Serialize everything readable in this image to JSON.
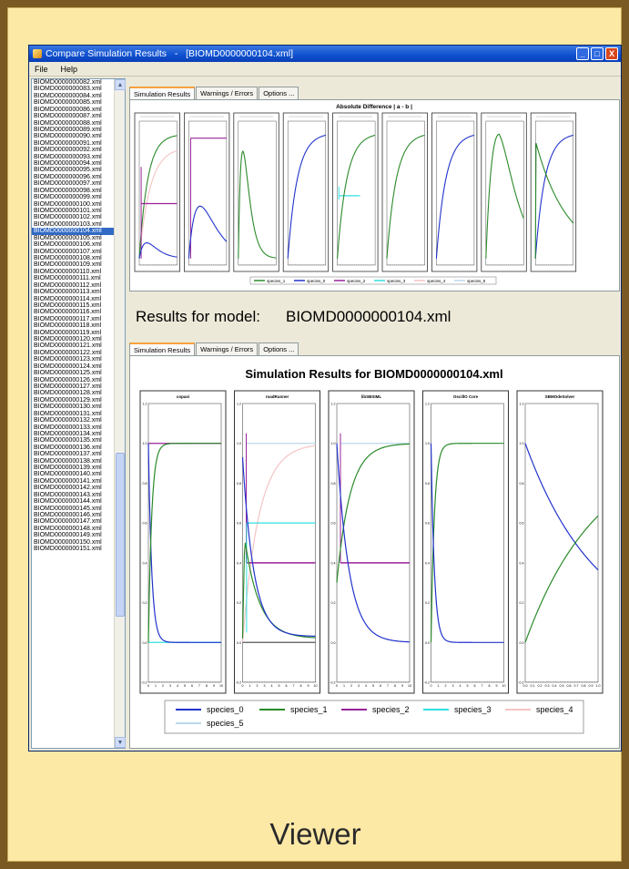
{
  "slide": {
    "caption": "Viewer",
    "background": "#fde9a6"
  },
  "window": {
    "title": "Compare Simulation Results",
    "title_sep": "-",
    "title_file": "[BIOMD0000000104.xml]",
    "minimize_label": "_",
    "maximize_label": "□",
    "close_label": "X"
  },
  "menu": {
    "file": "File",
    "help": "Help"
  },
  "model_list": {
    "items": [
      "BIOMD0000000082.xml",
      "BIOMD0000000083.xml",
      "BIOMD0000000084.xml",
      "BIOMD0000000085.xml",
      "BIOMD0000000086.xml",
      "BIOMD0000000087.xml",
      "BIOMD0000000088.xml",
      "BIOMD0000000089.xml",
      "BIOMD0000000090.xml",
      "BIOMD0000000091.xml",
      "BIOMD0000000092.xml",
      "BIOMD0000000093.xml",
      "BIOMD0000000094.xml",
      "BIOMD0000000095.xml",
      "BIOMD0000000096.xml",
      "BIOMD0000000097.xml",
      "BIOMD0000000098.xml",
      "BIOMD0000000099.xml",
      "BIOMD0000000100.xml",
      "BIOMD0000000101.xml",
      "BIOMD0000000102.xml",
      "BIOMD0000000103.xml",
      "BIOMD0000000104.xml",
      "BIOMD0000000105.xml",
      "BIOMD0000000106.xml",
      "BIOMD0000000107.xml",
      "BIOMD0000000108.xml",
      "BIOMD0000000109.xml",
      "BIOMD0000000110.xml",
      "BIOMD0000000111.xml",
      "BIOMD0000000112.xml",
      "BIOMD0000000113.xml",
      "BIOMD0000000114.xml",
      "BIOMD0000000115.xml",
      "BIOMD0000000116.xml",
      "BIOMD0000000117.xml",
      "BIOMD0000000118.xml",
      "BIOMD0000000119.xml",
      "BIOMD0000000120.xml",
      "BIOMD0000000121.xml",
      "BIOMD0000000122.xml",
      "BIOMD0000000123.xml",
      "BIOMD0000000124.xml",
      "BIOMD0000000125.xml",
      "BIOMD0000000126.xml",
      "BIOMD0000000127.xml",
      "BIOMD0000000128.xml",
      "BIOMD0000000129.xml",
      "BIOMD0000000130.xml",
      "BIOMD0000000131.xml",
      "BIOMD0000000132.xml",
      "BIOMD0000000133.xml",
      "BIOMD0000000134.xml",
      "BIOMD0000000135.xml",
      "BIOMD0000000136.xml",
      "BIOMD0000000137.xml",
      "BIOMD0000000138.xml",
      "BIOMD0000000139.xml",
      "BIOMD0000000140.xml",
      "BIOMD0000000141.xml",
      "BIOMD0000000142.xml",
      "BIOMD0000000143.xml",
      "BIOMD0000000144.xml",
      "BIOMD0000000145.xml",
      "BIOMD0000000146.xml",
      "BIOMD0000000147.xml",
      "BIOMD0000000148.xml",
      "BIOMD0000000149.xml",
      "BIOMD0000000150.xml",
      "BIOMD0000000151.xml"
    ],
    "selected": "BIOMD0000000104.xml"
  },
  "top_tabs": [
    "Simulation Results",
    "Warnings / Errors",
    "Options ..."
  ],
  "bottom_tabs": [
    "Simulation Results",
    "Warnings / Errors",
    "Options ..."
  ],
  "results_label": {
    "prefix": "Results for model:",
    "model": "BIOMD0000000104.xml"
  },
  "colors": {
    "species_0": "#2233cc",
    "species_1": "#2a8a2a",
    "species_2": "#992299",
    "species_3": "#33e0e0",
    "species_4": "#f4c4c4",
    "species_5": "#bcd8ec",
    "selection": "#316ac5"
  },
  "chart_data": [
    {
      "type": "line",
      "title": "Absolute Difference | a - b |",
      "panels": 9,
      "series": [
        {
          "name": "species_1",
          "color": "#2a8a2a"
        },
        {
          "name": "species_0",
          "color": "#2233cc"
        },
        {
          "name": "species_2",
          "color": "#992299"
        },
        {
          "name": "species_3",
          "color": "#33e0e0"
        },
        {
          "name": "species_4",
          "color": "#f4c4c4"
        },
        {
          "name": "species_5",
          "color": "#bcd8ec"
        }
      ]
    },
    {
      "type": "line",
      "title": "Simulation Results for BIOMD0000000104.xml",
      "panels": [
        {
          "title": "copasi",
          "xticks": [
            "0",
            "1",
            "2",
            "3",
            "4",
            "5",
            "6",
            "7",
            "8",
            "9",
            "10"
          ]
        },
        {
          "title": "roadRunner",
          "xticks": [
            "0",
            "1",
            "2",
            "3",
            "4",
            "5",
            "6",
            "7",
            "8",
            "9",
            "10"
          ]
        },
        {
          "title": "libSBSIML",
          "xticks": [
            "0",
            "1",
            "2",
            "3",
            "4",
            "5",
            "6",
            "7",
            "8",
            "9",
            "10"
          ]
        },
        {
          "title": "OscillO Core",
          "xticks": [
            "0",
            "1",
            "2",
            "3",
            "4",
            "5",
            "6",
            "7",
            "8",
            "9",
            "10"
          ]
        },
        {
          "title": "SBMOdeSolver",
          "xticks": [
            "0.0",
            "0.1",
            "0.2",
            "0.3",
            "0.4",
            "0.5",
            "0.6",
            "0.7",
            "0.8",
            "0.9",
            "1.0"
          ]
        }
      ],
      "yticks": [
        "1.2",
        "1.0",
        "0.8",
        "0.6",
        "0.4",
        "0.2",
        "0.0",
        "-0.2"
      ],
      "ylim": [
        -0.2,
        1.2
      ],
      "series": [
        {
          "name": "species_0",
          "color": "#2233cc"
        },
        {
          "name": "species_1",
          "color": "#2a8a2a"
        },
        {
          "name": "species_2",
          "color": "#992299"
        },
        {
          "name": "species_3",
          "color": "#33e0e0"
        },
        {
          "name": "species_4",
          "color": "#f4c4c4"
        },
        {
          "name": "species_5",
          "color": "#bcd8ec"
        }
      ]
    }
  ]
}
